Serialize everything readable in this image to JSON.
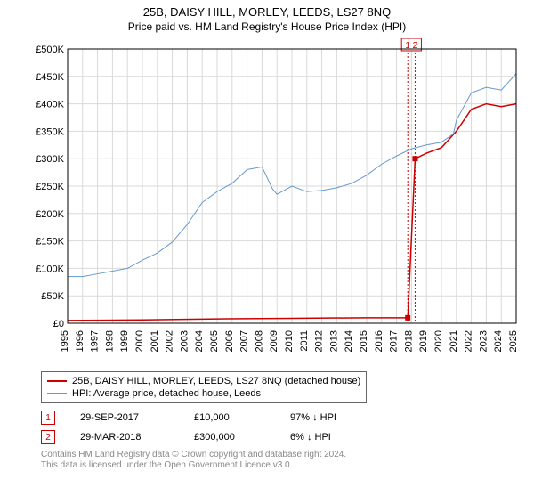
{
  "title": "25B, DAISY HILL, MORLEY, LEEDS, LS27 8NQ",
  "subtitle": "Price paid vs. HM Land Registry's House Price Index (HPI)",
  "chart": {
    "type": "line",
    "ylabel_prefix": "£",
    "ylim": [
      0,
      500000
    ],
    "ytick_step": 50000,
    "y_ticks": [
      "£0",
      "£50K",
      "£100K",
      "£150K",
      "£200K",
      "£250K",
      "£300K",
      "£350K",
      "£400K",
      "£450K",
      "£500K"
    ],
    "xlim": [
      1995,
      2025
    ],
    "x_ticks": [
      1995,
      1996,
      1997,
      1998,
      1999,
      2000,
      2001,
      2002,
      2003,
      2004,
      2005,
      2006,
      2007,
      2008,
      2009,
      2010,
      2011,
      2012,
      2013,
      2014,
      2015,
      2016,
      2017,
      2018,
      2019,
      2020,
      2021,
      2022,
      2023,
      2024,
      2025
    ],
    "grid_color": "#d9d9d9",
    "background_color": "#ffffff",
    "axis_color": "#000000",
    "label_fontsize": 11,
    "series": [
      {
        "name": "property",
        "color": "#cc0000",
        "line_width": 1.5,
        "data": [
          [
            1995,
            5000
          ],
          [
            2000,
            6000
          ],
          [
            2005,
            8000
          ],
          [
            2010,
            9000
          ],
          [
            2015,
            10000
          ],
          [
            2017.4,
            10000
          ],
          [
            2017.75,
            10000
          ],
          [
            2018.24,
            300000
          ],
          [
            2019,
            310000
          ],
          [
            2020,
            320000
          ],
          [
            2021,
            350000
          ],
          [
            2022,
            390000
          ],
          [
            2023,
            400000
          ],
          [
            2024,
            395000
          ],
          [
            2025,
            400000
          ]
        ]
      },
      {
        "name": "hpi",
        "color": "#6699cc",
        "line_width": 1,
        "data": [
          [
            1995,
            85000
          ],
          [
            1996,
            85000
          ],
          [
            1997,
            90000
          ],
          [
            1998,
            95000
          ],
          [
            1999,
            100000
          ],
          [
            2000,
            115000
          ],
          [
            2001,
            128000
          ],
          [
            2002,
            148000
          ],
          [
            2003,
            180000
          ],
          [
            2004,
            220000
          ],
          [
            2005,
            240000
          ],
          [
            2006,
            255000
          ],
          [
            2007,
            280000
          ],
          [
            2008,
            285000
          ],
          [
            2008.7,
            245000
          ],
          [
            2009,
            235000
          ],
          [
            2010,
            250000
          ],
          [
            2011,
            240000
          ],
          [
            2012,
            242000
          ],
          [
            2013,
            247000
          ],
          [
            2014,
            255000
          ],
          [
            2015,
            270000
          ],
          [
            2016,
            290000
          ],
          [
            2017,
            305000
          ],
          [
            2018,
            318000
          ],
          [
            2019,
            325000
          ],
          [
            2020,
            330000
          ],
          [
            2020.8,
            345000
          ],
          [
            2021,
            370000
          ],
          [
            2022,
            420000
          ],
          [
            2023,
            430000
          ],
          [
            2024,
            425000
          ],
          [
            2025,
            455000
          ]
        ]
      }
    ],
    "event_markers": [
      {
        "num": "1",
        "x": 2017.75,
        "color": "#cc0000"
      },
      {
        "num": "2",
        "x": 2018.24,
        "color": "#cc0000"
      }
    ]
  },
  "legend": {
    "items": [
      {
        "color": "#cc0000",
        "label": "25B, DAISY HILL, MORLEY, LEEDS, LS27 8NQ (detached house)"
      },
      {
        "color": "#6699cc",
        "label": "HPI: Average price, detached house, Leeds"
      }
    ]
  },
  "events": [
    {
      "num": "1",
      "date": "29-SEP-2017",
      "price": "£10,000",
      "pct": "97% ↓ HPI"
    },
    {
      "num": "2",
      "date": "29-MAR-2018",
      "price": "£300,000",
      "pct": "6% ↓ HPI"
    }
  ],
  "footer": {
    "line1": "Contains HM Land Registry data © Crown copyright and database right 2024.",
    "line2": "This data is licensed under the Open Government Licence v3.0."
  }
}
